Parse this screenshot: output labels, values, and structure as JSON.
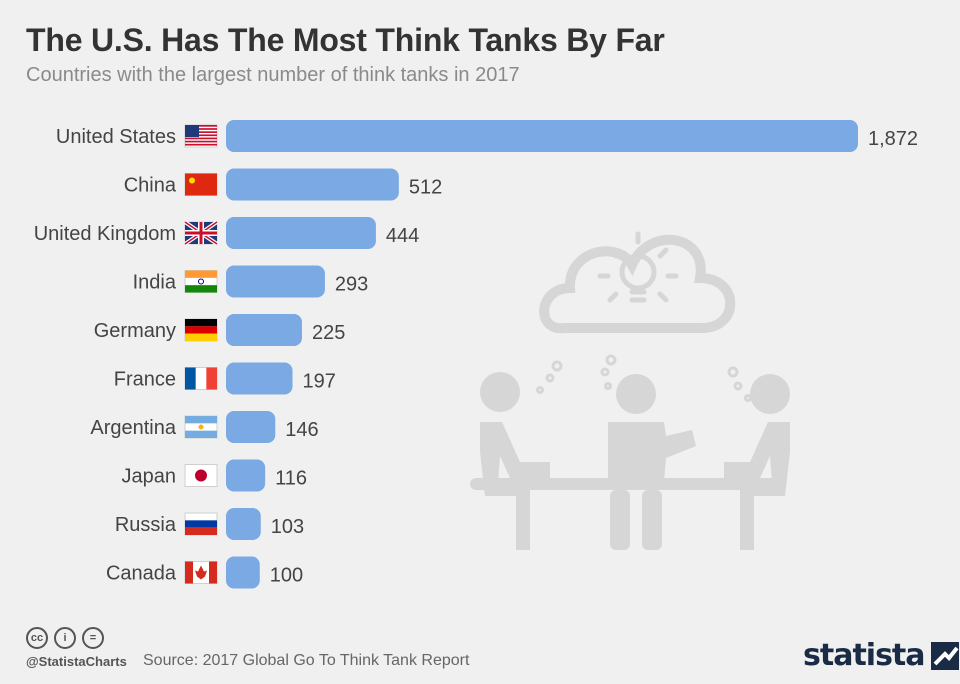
{
  "header": {
    "title": "The U.S. Has The Most Think Tanks By Far",
    "subtitle": "Countries with the largest number of think tanks in 2017"
  },
  "colors": {
    "bar": "#7aa9e3",
    "label": "#444444",
    "illustration": "#d6d6d6"
  },
  "chart_data": {
    "type": "bar",
    "orientation": "horizontal",
    "categories": [
      "United States",
      "China",
      "United Kingdom",
      "India",
      "Germany",
      "France",
      "Argentina",
      "Japan",
      "Russia",
      "Canada"
    ],
    "values": [
      1872,
      512,
      444,
      293,
      225,
      197,
      146,
      116,
      103,
      100
    ],
    "value_labels": [
      "1,872",
      "512",
      "444",
      "293",
      "225",
      "197",
      "146",
      "116",
      "103",
      "100"
    ],
    "flags": [
      "us-flag",
      "china-flag",
      "uk-flag",
      "india-flag",
      "germany-flag",
      "france-flag",
      "argentina-flag",
      "japan-flag",
      "russia-flag",
      "canada-flag"
    ],
    "title": "The U.S. Has The Most Think Tanks By Far",
    "subtitle": "Countries with the largest number of think tanks in 2017",
    "xlabel": "",
    "ylabel": "",
    "grid": false
  },
  "footer": {
    "license_icons": [
      "cc-icon",
      "by-icon",
      "nd-icon"
    ],
    "license_glyphs": [
      "cc",
      "i",
      "="
    ],
    "handle": "@StatistaCharts",
    "source": "Source: 2017 Global Go To Think Tank Report",
    "brand": "statista"
  }
}
